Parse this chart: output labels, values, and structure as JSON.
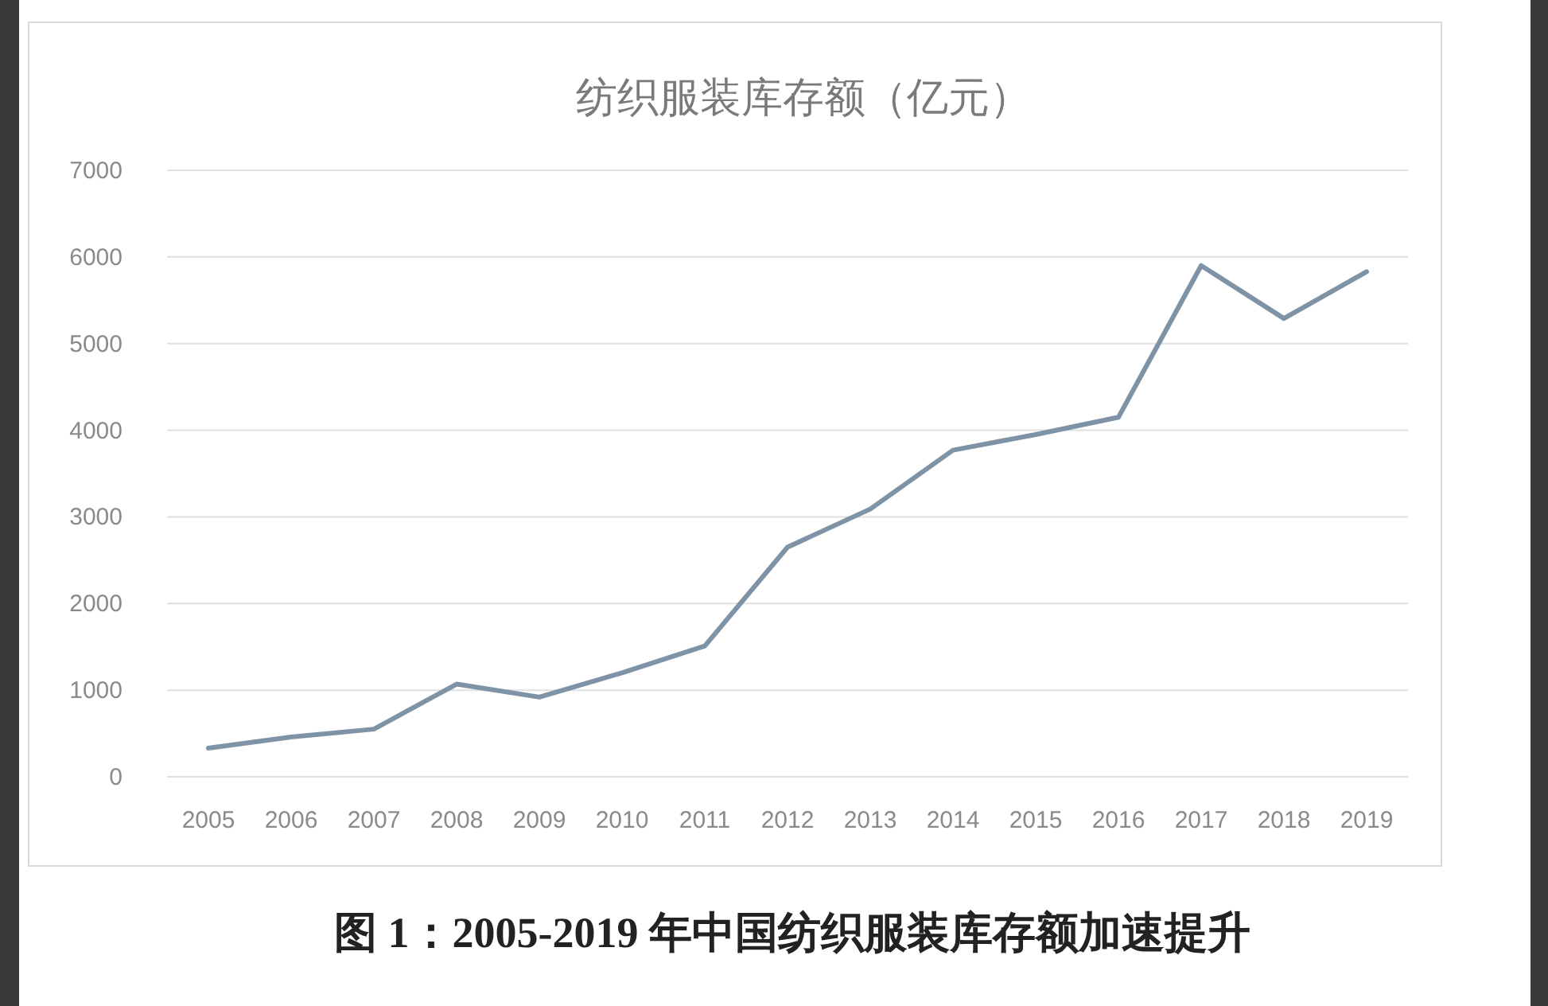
{
  "chart_data": {
    "type": "line",
    "title": "纺织服装库存额（亿元）",
    "categories": [
      "2005",
      "2006",
      "2007",
      "2008",
      "2009",
      "2010",
      "2011",
      "2012",
      "2013",
      "2014",
      "2015",
      "2016",
      "2017",
      "2018",
      "2019"
    ],
    "series": [
      {
        "color": "#7f93a6",
        "values": [
          330,
          460,
          550,
          1070,
          920,
          1200,
          1510,
          2650,
          3090,
          3770,
          3950,
          4150,
          5900,
          5290,
          5830
        ]
      }
    ],
    "ylim": [
      0,
      7000
    ],
    "yticks": [
      0,
      1000,
      2000,
      3000,
      4000,
      5000,
      6000,
      7000
    ],
    "grid": "y",
    "annotations": [
      "图 1：2005-2019 年中国纺织服装库存额加速提升"
    ]
  }
}
